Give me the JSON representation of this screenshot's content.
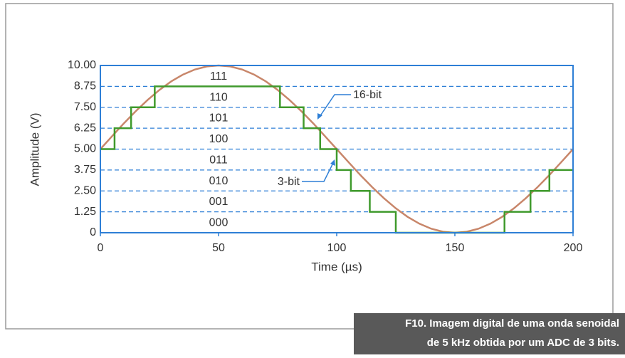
{
  "chart_data": {
    "type": "line",
    "xlabel": "Time (µs)",
    "ylabel": "Amplitude (V)",
    "xlim": [
      0,
      200
    ],
    "xticks": [
      0,
      50,
      100,
      150,
      200
    ],
    "ylim": [
      0,
      10
    ],
    "yticks": [
      0,
      1.25,
      {
        "value": 2.5,
        "label": "2.50"
      },
      3.75,
      {
        "value": 5,
        "label": "5.00"
      },
      6.25,
      {
        "value": 7.5,
        "label": "7.50"
      },
      8.75,
      {
        "value": 10,
        "label": "10.00"
      }
    ],
    "grid": true,
    "level_labels": [
      "000",
      "001",
      "010",
      "011",
      "100",
      "101",
      "110",
      "111"
    ],
    "series": [
      {
        "name": "16-bit",
        "color": "#c8866a",
        "step": false,
        "x": [
          0,
          5,
          10,
          15,
          20,
          25,
          30,
          35,
          40,
          45,
          50,
          55,
          60,
          65,
          70,
          75,
          80,
          85,
          90,
          95,
          100,
          105,
          110,
          115,
          120,
          125,
          130,
          135,
          140,
          145,
          150,
          155,
          160,
          165,
          170,
          175,
          180,
          185,
          190,
          195,
          200
        ],
        "values": [
          5,
          5.78,
          6.55,
          7.27,
          7.94,
          8.54,
          9.05,
          9.46,
          9.76,
          9.94,
          10,
          9.94,
          9.76,
          9.46,
          9.05,
          8.54,
          7.94,
          7.27,
          6.55,
          5.78,
          5,
          4.22,
          3.45,
          2.73,
          2.06,
          1.46,
          0.95,
          0.54,
          0.24,
          0.06,
          0,
          0.06,
          0.24,
          0.54,
          0.95,
          1.46,
          2.06,
          2.73,
          3.45,
          4.22,
          5
        ]
      },
      {
        "name": "3-bit",
        "color": "#3f9a2c",
        "step": true,
        "x": [
          0,
          6,
          13,
          23,
          76,
          86,
          93,
          100,
          106,
          114,
          125,
          171,
          182,
          190,
          200
        ],
        "values": [
          5,
          6.25,
          7.5,
          8.75,
          7.5,
          6.25,
          5,
          3.75,
          2.5,
          1.25,
          0,
          1.25,
          2.5,
          3.75,
          3.75
        ]
      }
    ],
    "caption": [
      "F10. Imagem digital de uma onda senoidal",
      "de 5 kHz obtida por um ADC de 3 bits."
    ]
  }
}
